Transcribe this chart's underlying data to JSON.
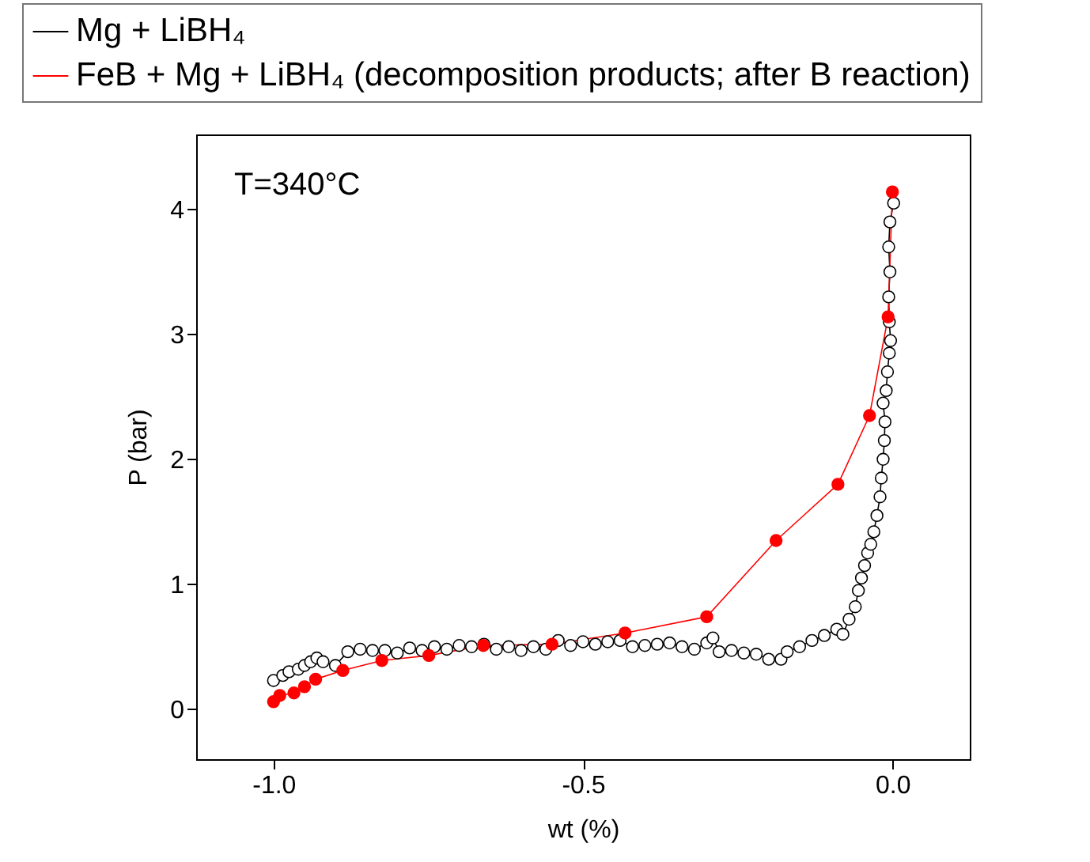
{
  "chart_data": {
    "type": "line",
    "xlabel": "wt (%)",
    "ylabel": "P (bar)",
    "xlim": [
      -1.125,
      0.125
    ],
    "ylim": [
      -0.4,
      4.6
    ],
    "xticks": [
      {
        "value": -1.0,
        "label": "-1.0"
      },
      -0.5,
      {
        "value": 0.0,
        "label": "0.0"
      }
    ],
    "yticks": [
      0,
      1,
      2,
      3,
      4
    ],
    "grid": false,
    "legend": "top left",
    "marker": "circle",
    "line_style": "solid",
    "annotations": [
      "T=340°C"
    ],
    "series": [
      {
        "name": "Mg + LiBH₄",
        "color": "#000000",
        "x": [
          -1.0,
          -0.985,
          -0.975,
          -0.96,
          -0.95,
          -0.94,
          -0.93,
          -0.92,
          -0.9,
          -0.88,
          -0.86,
          -0.84,
          -0.82,
          -0.8,
          -0.78,
          -0.76,
          -0.74,
          -0.72,
          -0.7,
          -0.68,
          -0.66,
          -0.64,
          -0.62,
          -0.6,
          -0.58,
          -0.56,
          -0.54,
          -0.52,
          -0.5,
          -0.48,
          -0.46,
          -0.44,
          -0.42,
          -0.4,
          -0.38,
          -0.36,
          -0.34,
          -0.32,
          -0.3,
          -0.29,
          -0.28,
          -0.26,
          -0.24,
          -0.22,
          -0.2,
          -0.18,
          -0.17,
          -0.15,
          -0.13,
          -0.11,
          -0.09,
          -0.08,
          -0.07,
          -0.06,
          -0.055,
          -0.05,
          -0.045,
          -0.04,
          -0.035,
          -0.03,
          -0.025,
          -0.02,
          -0.018,
          -0.015,
          -0.013,
          -0.012,
          -0.015,
          -0.01,
          -0.008,
          -0.005,
          -0.003,
          -0.005,
          -0.006,
          -0.004,
          -0.006,
          -0.004,
          0.002
        ],
        "values": [
          0.23,
          0.27,
          0.3,
          0.32,
          0.35,
          0.38,
          0.41,
          0.38,
          0.35,
          0.46,
          0.48,
          0.47,
          0.47,
          0.45,
          0.49,
          0.47,
          0.5,
          0.48,
          0.51,
          0.5,
          0.52,
          0.48,
          0.5,
          0.47,
          0.5,
          0.48,
          0.55,
          0.51,
          0.54,
          0.52,
          0.54,
          0.55,
          0.5,
          0.51,
          0.52,
          0.53,
          0.5,
          0.48,
          0.53,
          0.57,
          0.46,
          0.47,
          0.45,
          0.44,
          0.4,
          0.4,
          0.46,
          0.5,
          0.55,
          0.59,
          0.64,
          0.6,
          0.72,
          0.82,
          0.95,
          1.05,
          1.15,
          1.25,
          1.32,
          1.42,
          1.55,
          1.7,
          1.85,
          2.0,
          2.15,
          2.3,
          2.45,
          2.55,
          2.7,
          2.85,
          2.95,
          3.1,
          3.3,
          3.5,
          3.7,
          3.9,
          4.05
        ]
      },
      {
        "name": "FeB + Mg + LiBH₄ (decomposition products; after B reaction)",
        "color": "#ff0000",
        "x": [
          -1.0,
          -0.99,
          -0.967,
          -0.95,
          -0.932,
          -0.888,
          -0.825,
          -0.749,
          -0.661,
          -0.55,
          -0.432,
          -0.3,
          -0.188,
          -0.088,
          -0.037,
          -0.007,
          0.0
        ],
        "values": [
          0.06,
          0.11,
          0.13,
          0.18,
          0.24,
          0.31,
          0.39,
          0.43,
          0.51,
          0.52,
          0.61,
          0.74,
          1.35,
          1.8,
          2.35,
          3.14,
          4.14
        ]
      }
    ]
  }
}
